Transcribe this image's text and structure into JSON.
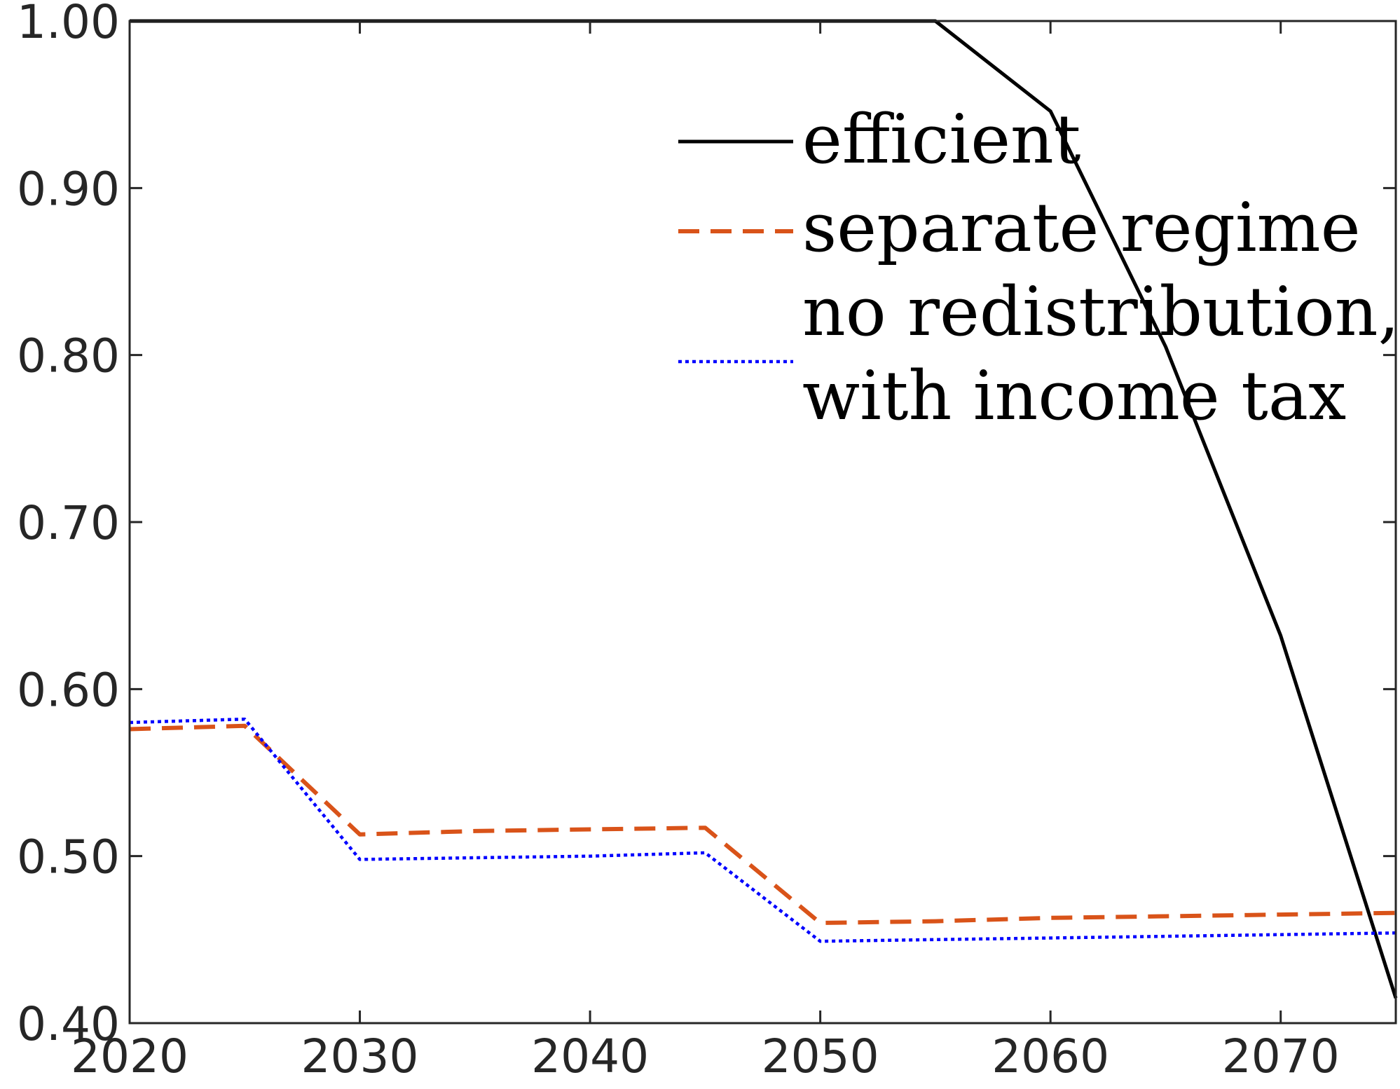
{
  "chart_data": {
    "type": "line",
    "title": "",
    "xlabel": "",
    "ylabel": "",
    "xlim": [
      2020,
      2075
    ],
    "ylim": [
      0.4,
      1.0
    ],
    "xticks": [
      2020,
      2030,
      2040,
      2050,
      2060,
      2070
    ],
    "xtick_labels": [
      "2020",
      "2030",
      "2040",
      "2050",
      "2060",
      "2070"
    ],
    "yticks": [
      0.4,
      0.5,
      0.6,
      0.7,
      0.8,
      0.9,
      1.0
    ],
    "ytick_labels": [
      "0.40",
      "0.50",
      "0.60",
      "0.70",
      "0.80",
      "0.90",
      "1.00"
    ],
    "grid": false,
    "legend_position": "top-right",
    "x": [
      2020,
      2025,
      2030,
      2035,
      2040,
      2045,
      2050,
      2055,
      2060,
      2065,
      2070,
      2075
    ],
    "series": [
      {
        "name": "efficient",
        "color": "#000000",
        "style": "solid",
        "values": [
          1.0,
          1.0,
          1.0,
          1.0,
          1.0,
          1.0,
          1.0,
          1.0,
          0.946,
          0.805,
          0.632,
          0.415
        ]
      },
      {
        "name": "separate regime",
        "color": "#D95319",
        "style": "dashed",
        "values": [
          0.576,
          0.578,
          0.513,
          0.515,
          0.516,
          0.517,
          0.46,
          0.461,
          0.463,
          0.464,
          0.465,
          0.466
        ]
      },
      {
        "name": "no redistribution, with income tax",
        "legend_lines": [
          "no redistribution,",
          "with income tax"
        ],
        "color": "#0000FF",
        "style": "dotted",
        "values": [
          0.58,
          0.582,
          0.498,
          0.499,
          0.5,
          0.502,
          0.449,
          0.45,
          0.451,
          0.452,
          0.453,
          0.454
        ]
      }
    ]
  }
}
